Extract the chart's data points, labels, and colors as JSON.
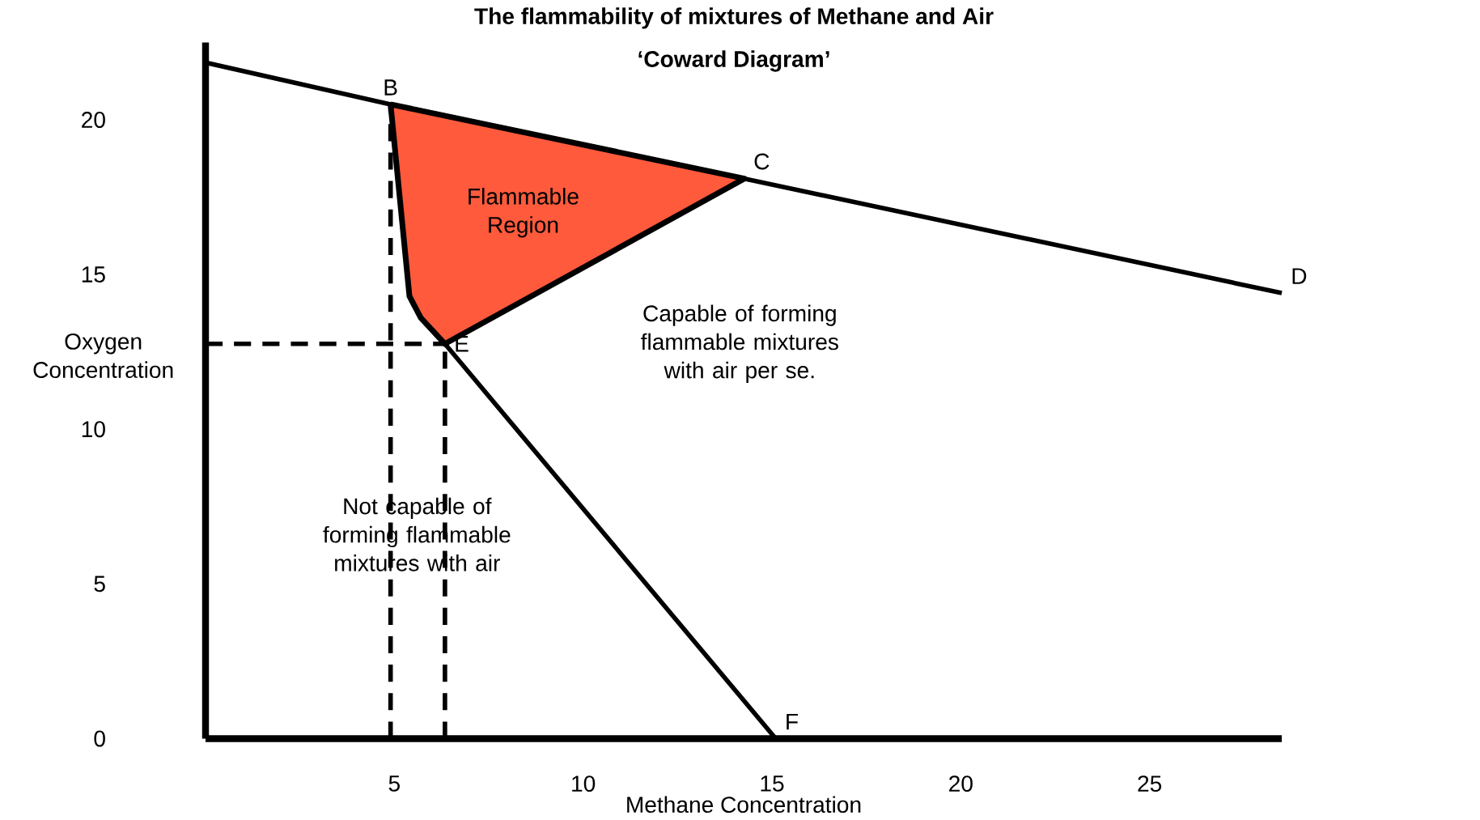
{
  "chart_data": {
    "type": "line",
    "title": "The flammability of mixtures of Methane and Air",
    "subtitle": "‘Coward Diagram’",
    "xlabel": "Methane Concentration",
    "ylabel": "Oxygen Concentration",
    "xlim": [
      0,
      28.5
    ],
    "ylim": [
      0,
      22.5
    ],
    "xticks": [
      5,
      10,
      15,
      20,
      25
    ],
    "yticks": [
      0,
      5,
      10,
      15,
      20
    ],
    "marker": "none",
    "series": [
      {
        "type": "area",
        "color": "#ff5a3c",
        "x": [
          4.9,
          14.27,
          6.34,
          5.7,
          5.4,
          4.9
        ],
        "values": [
          20.5,
          18.1,
          12.76,
          13.6,
          14.3,
          20.5
        ]
      },
      {
        "color": "#000000",
        "line_style": "solid",
        "x": [
          0,
          4.9,
          14.27,
          28.5
        ],
        "values": [
          21.85,
          20.5,
          18.1,
          14.4
        ]
      },
      {
        "color": "#000000",
        "line_style": "solid",
        "x": [
          6.34,
          15.1
        ],
        "values": [
          12.76,
          0
        ]
      },
      {
        "color": "#000000",
        "line_style": "dashed",
        "x": [
          0,
          6.34
        ],
        "values": [
          12.76,
          12.76
        ]
      },
      {
        "color": "#000000",
        "line_style": "dashed",
        "x": [
          4.9,
          4.9
        ],
        "values": [
          0,
          20.5
        ]
      },
      {
        "color": "#000000",
        "line_style": "dashed",
        "x": [
          6.34,
          6.34
        ],
        "values": [
          0,
          12.76
        ]
      }
    ],
    "annotations": [
      {
        "text": "B",
        "x": 4.9,
        "y": 20.5
      },
      {
        "text": "C",
        "x": 14.27,
        "y": 18.1
      },
      {
        "text": "D",
        "x": 28.5,
        "y": 14.4
      },
      {
        "text": "E",
        "x": 6.34,
        "y": 12.76
      },
      {
        "text": "F",
        "x": 15.1,
        "y": 0
      },
      "Flammable Region",
      "Capable of forming flammable mixtures with air per se.",
      "Not capable of forming flammable mixtures with air"
    ]
  }
}
